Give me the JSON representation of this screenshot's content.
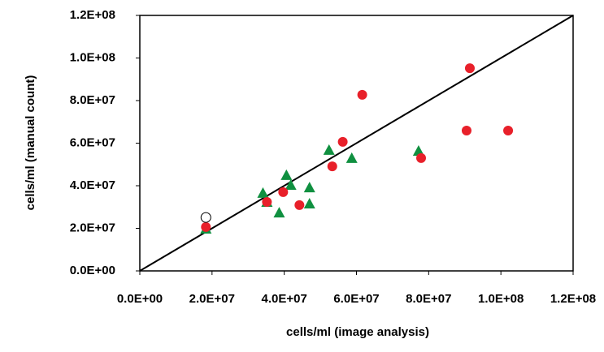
{
  "chart_data": {
    "type": "scatter",
    "xlabel": "cells/ml (image analysis)",
    "ylabel": "cells/ml (manual count)",
    "xlim": [
      0,
      120000000
    ],
    "ylim": [
      0,
      120000000
    ],
    "xticks": [
      {
        "value": 0,
        "label": "0.0E+00"
      },
      {
        "value": 20000000,
        "label": "2.0E+07"
      },
      {
        "value": 40000000,
        "label": "4.0E+07"
      },
      {
        "value": 60000000,
        "label": "6.0E+07"
      },
      {
        "value": 80000000,
        "label": "8.0E+07"
      },
      {
        "value": 100000000,
        "label": "1.0E+08"
      },
      {
        "value": 120000000,
        "label": "1.2E+08"
      }
    ],
    "yticks": [
      {
        "value": 0,
        "label": "0.0E+00"
      },
      {
        "value": 20000000,
        "label": "2.0E+07"
      },
      {
        "value": 40000000,
        "label": "4.0E+07"
      },
      {
        "value": 60000000,
        "label": "6.0E+07"
      },
      {
        "value": 80000000,
        "label": "8.0E+07"
      },
      {
        "value": 100000000,
        "label": "1.0E+08"
      },
      {
        "value": 120000000,
        "label": "1.2E+08"
      }
    ],
    "identity_line": true,
    "series": [
      {
        "marker": "triangle",
        "color": "#109040",
        "x": [
          18300000,
          34100000,
          35200000,
          38600000,
          40600000,
          41800000,
          47000000,
          47000000,
          52400000,
          58700000,
          77200000
        ],
        "y": [
          19800000,
          36600000,
          32400000,
          27400000,
          45000000,
          40400000,
          39200000,
          31600000,
          56800000,
          53000000,
          56400000
        ]
      },
      {
        "marker": "circle",
        "color": "#e8202a",
        "x": [
          18300000,
          35200000,
          39700000,
          44200000,
          53300000,
          56200000,
          61600000,
          77900000,
          90500000,
          91400000,
          102000000
        ],
        "y": [
          20600000,
          32400000,
          37000000,
          30900000,
          49100000,
          60600000,
          82700000,
          53000000,
          65900000,
          95200000,
          65900000
        ]
      },
      {
        "marker": "circle",
        "color": "#ffffff",
        "x": [
          18300000
        ],
        "y": [
          25100000
        ]
      }
    ]
  }
}
